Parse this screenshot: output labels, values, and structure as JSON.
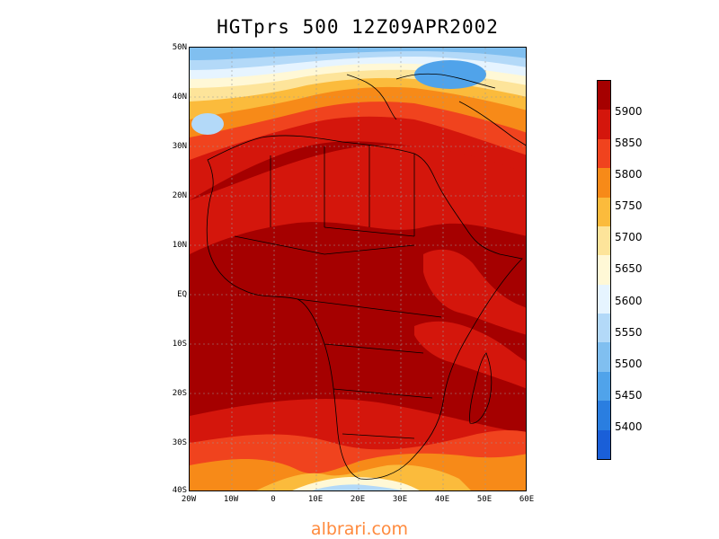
{
  "title": "HGTprs 500 12Z09APR2002",
  "watermark": "albrari.com",
  "lat_labels": [
    "50N",
    "40N",
    "30N",
    "20N",
    "10N",
    "EQ",
    "10S",
    "20S",
    "30S",
    "40S"
  ],
  "lon_labels": [
    "20W",
    "10W",
    "0",
    "10E",
    "20E",
    "30E",
    "40E",
    "50E",
    "60E"
  ],
  "colorbar": {
    "labels": [
      "5900",
      "5850",
      "5800",
      "5750",
      "5700",
      "5650",
      "5600",
      "5550",
      "5500",
      "5450",
      "5400"
    ],
    "colors": [
      "#a50000",
      "#d4160c",
      "#f0431e",
      "#f78a18",
      "#fbbb3c",
      "#fde49a",
      "#fff8d6",
      "#e6f4ff",
      "#b3d9f8",
      "#80bff0",
      "#50a3ea",
      "#2a7ee0",
      "#1a5fd8"
    ]
  },
  "map": {
    "region": "Africa",
    "lon_range": [
      -20,
      60
    ],
    "lat_range": [
      -40,
      50
    ],
    "field": "500 hPa geopotential height",
    "grid": true
  }
}
